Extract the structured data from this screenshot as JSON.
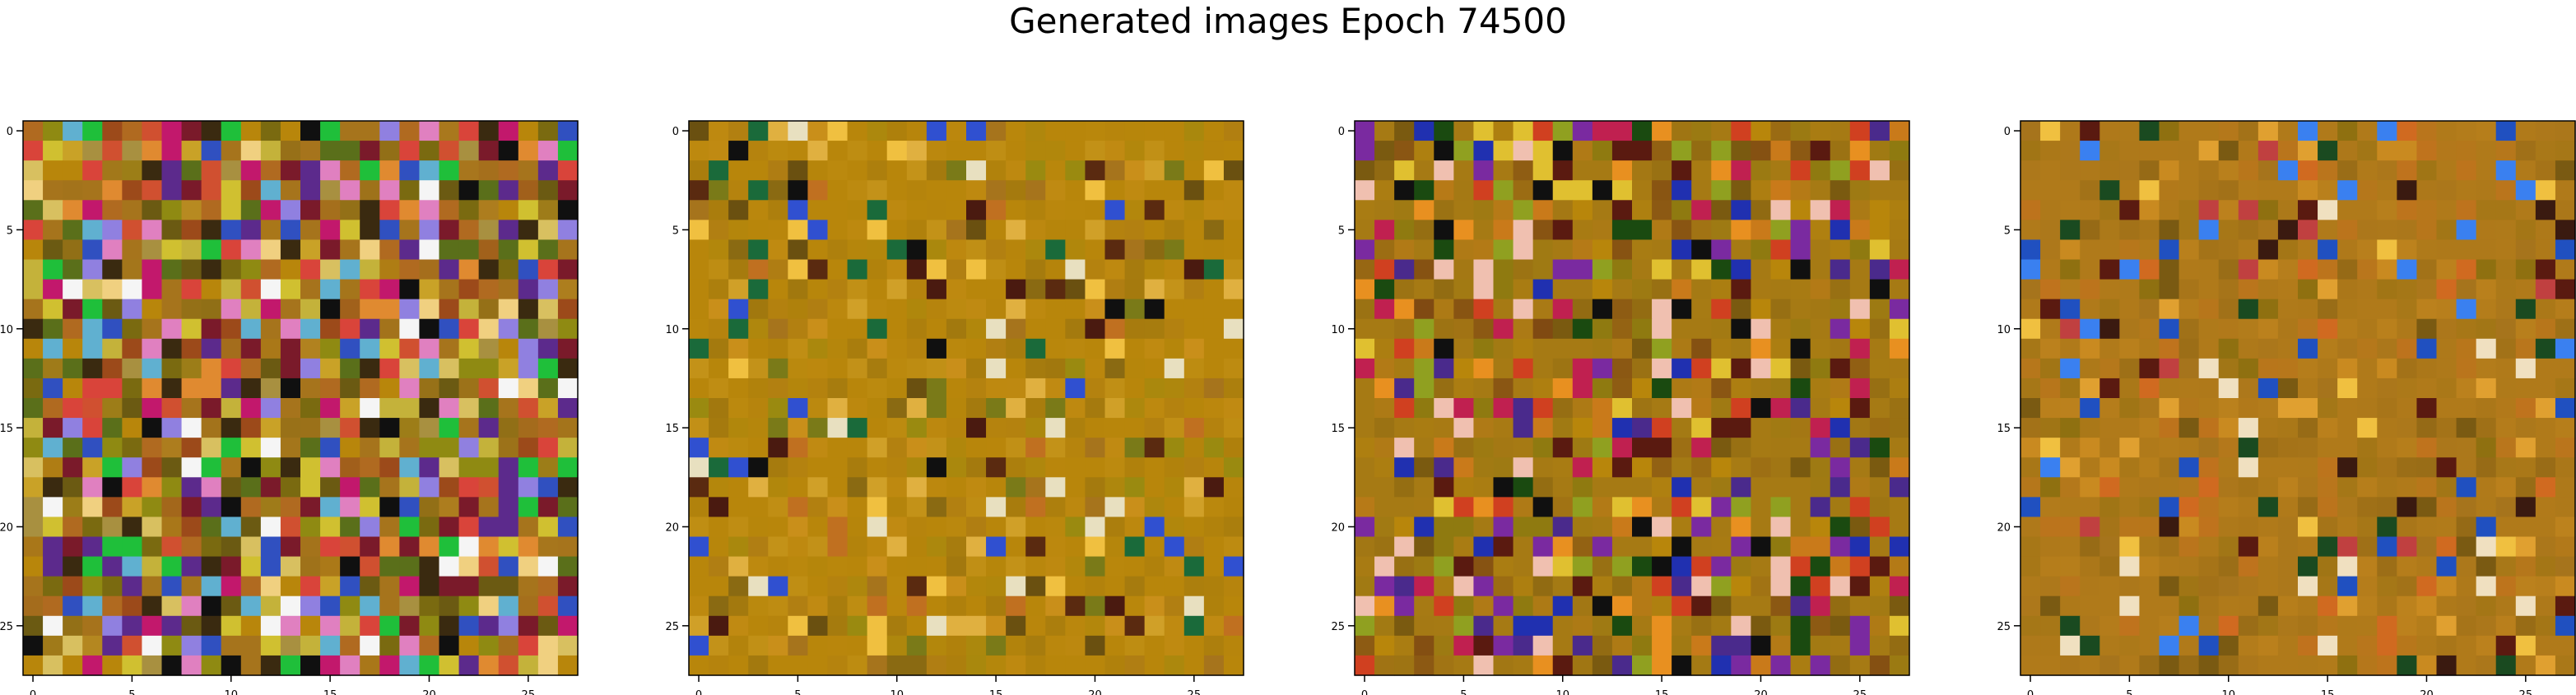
{
  "title": "Generated images Epoch 74500",
  "chart_data": [
    {
      "type": "heatmap",
      "description_source": "image panel 1",
      "grid": false,
      "rows": 28,
      "cols": 28,
      "xticks": [
        0,
        5,
        10,
        15,
        20,
        25
      ],
      "yticks": [
        0,
        5,
        10,
        15,
        20,
        25
      ],
      "base_color": "#a6741c",
      "palette": [
        "#a6741c",
        "#b8860b",
        "#8f8a12",
        "#7a6a10",
        "#c9a227",
        "#9c4a1a",
        "#6b5a12",
        "#b06a20",
        "#c4b23a",
        "#d05030",
        "#5a6f1a",
        "#3a2a10",
        "#d8c060",
        "#7a1a2a",
        "#a89040",
        "#e08a30",
        "#d9443a",
        "#c2186c",
        "#5c2a8c",
        "#3050c0",
        "#1fbf3a",
        "#e080c0",
        "#f0d080",
        "#60b0d0",
        "#9080e0",
        "#101010",
        "#f5f5f5",
        "#d0c030"
      ],
      "colorfulness": 0.9,
      "seed": 11
    },
    {
      "type": "heatmap",
      "description_source": "image panel 2",
      "grid": false,
      "rows": 28,
      "cols": 28,
      "xticks": [
        0,
        5,
        10,
        15,
        20,
        25
      ],
      "yticks": [
        0,
        5,
        10,
        15,
        20,
        25
      ],
      "base_color": "#b8860b",
      "palette": [
        "#b8860b",
        "#a6741c",
        "#9a8a10",
        "#c98f1a",
        "#8a6a12",
        "#d0a028",
        "#6a5010",
        "#c07020",
        "#e0b040",
        "#4a1a10",
        "#7a7a18",
        "#f0c040",
        "#5a2a10",
        "#e8e0c0",
        "#3050d0",
        "#1a6a3a",
        "#101010"
      ],
      "colorfulness": 0.35,
      "seed": 23
    },
    {
      "type": "heatmap",
      "description_source": "image panel 3",
      "grid": false,
      "rows": 28,
      "cols": 28,
      "xticks": [
        0,
        5,
        10,
        15,
        20,
        25
      ],
      "yticks": [
        0,
        5,
        10,
        15,
        20,
        25
      ],
      "base_color": "#a67a14",
      "palette": [
        "#a67a14",
        "#8f7a10",
        "#b8860b",
        "#c97a1a",
        "#7a5a10",
        "#5a1a10",
        "#d04020",
        "#e0c030",
        "#4a2a8c",
        "#2030b0",
        "#7a2aa0",
        "#f0c0b0",
        "#1a4a10",
        "#e89020",
        "#101010",
        "#90a020",
        "#c02050"
      ],
      "colorfulness": 0.55,
      "seed": 37
    },
    {
      "type": "heatmap",
      "description_source": "image panel 4",
      "grid": false,
      "rows": 28,
      "cols": 28,
      "xticks": [
        0,
        5,
        10,
        15,
        20,
        25
      ],
      "yticks": [
        0,
        5,
        10,
        15,
        20,
        25
      ],
      "base_color": "#b07a1a",
      "palette": [
        "#b07a1a",
        "#a6741c",
        "#c98a20",
        "#8f7010",
        "#d06a20",
        "#7a5a12",
        "#e0a030",
        "#5a1a10",
        "#3a1a10",
        "#f0c040",
        "#2050c0",
        "#3a80f0",
        "#1a4a20",
        "#f0e0c0",
        "#c04040"
      ],
      "colorfulness": 0.3,
      "seed": 53
    }
  ]
}
